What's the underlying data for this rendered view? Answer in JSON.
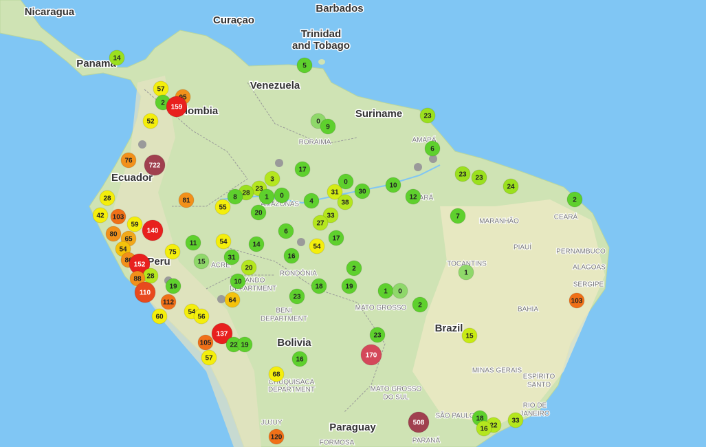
{
  "places": [
    {
      "label": "Nicaragua"
    },
    {
      "label": "Barbados"
    },
    {
      "label": "Curaçao"
    },
    {
      "label": "Trinidad"
    },
    {
      "label": "and Tobago"
    },
    {
      "label": "Panama"
    },
    {
      "label": "Venezuela"
    },
    {
      "label": "Colombia"
    },
    {
      "label": "Suriname"
    },
    {
      "label": "Ecuador"
    },
    {
      "label": "Peru"
    },
    {
      "label": "Bolivia"
    },
    {
      "label": "Brazil"
    },
    {
      "label": "Paraguay"
    },
    {
      "label": "RORAIMA"
    },
    {
      "label": "AMAPÁ"
    },
    {
      "label": "AMAZONAS"
    },
    {
      "label": "PARÁ"
    },
    {
      "label": "MARANHÃO"
    },
    {
      "label": "CEARÁ"
    },
    {
      "label": "PIAUÍ"
    },
    {
      "label": "PERNAMBUCO"
    },
    {
      "label": "ALAGOAS"
    },
    {
      "label": "SERGIPE"
    },
    {
      "label": "TOCANTINS"
    },
    {
      "label": "ACRE"
    },
    {
      "label": "RONDÔNIA"
    },
    {
      "label": "PANDO"
    },
    {
      "label": "DEPARTMENT"
    },
    {
      "label": "MATO GROSSO"
    },
    {
      "label": "BAHIA"
    },
    {
      "label": "BENI"
    },
    {
      "label": "DEPARTMENT"
    },
    {
      "label": "MINAS GERAIS"
    },
    {
      "label": "ESPÍRITO"
    },
    {
      "label": "SANTO"
    },
    {
      "label": "CHUQUISACA"
    },
    {
      "label": "DEPARTMENT"
    },
    {
      "label": "MATO GROSSO"
    },
    {
      "label": "DO SUL"
    },
    {
      "label": "RIO DE"
    },
    {
      "label": "JANEIRO"
    },
    {
      "label": "SÃO PAULO"
    },
    {
      "label": "JUJUY"
    },
    {
      "label": "PARANÁ"
    },
    {
      "label": "FORMOSA"
    }
  ],
  "markers": [
    {
      "value": 14,
      "color": "#9be01e"
    },
    {
      "value": 57,
      "color": "#f4ee0c"
    },
    {
      "value": 95,
      "color": "#f2901a"
    },
    {
      "value": 2,
      "color": "#5ed02d"
    },
    {
      "value": 159,
      "color": "#e8201e"
    },
    {
      "value": 52,
      "color": "#f4ee0c"
    },
    {
      "value": 5,
      "color": "#5ed02d"
    },
    {
      "value": 23,
      "color": "#9be01e"
    },
    {
      "value": 0,
      "color": "#8fd86a"
    },
    {
      "value": 9,
      "color": "#5ed02d"
    },
    {
      "value": 6,
      "color": "#5ed02d"
    },
    {
      "value": 76,
      "color": "#f2901a"
    },
    {
      "value": 722,
      "color": "#a0404f"
    },
    {
      "value": 17,
      "color": "#5ed02d"
    },
    {
      "value": 3,
      "color": "#b4e61e"
    },
    {
      "value": 0,
      "color": "#5ed02d"
    },
    {
      "value": 23,
      "color": "#b4e61e"
    },
    {
      "value": 28,
      "color": "#9be01e"
    },
    {
      "value": 8,
      "color": "#5ed02d"
    },
    {
      "value": 1,
      "color": "#5ed02d"
    },
    {
      "value": 0,
      "color": "#5ed02d"
    },
    {
      "value": 31,
      "color": "#d4ec14"
    },
    {
      "value": 30,
      "color": "#5ed02d"
    },
    {
      "value": 10,
      "color": "#5ed02d"
    },
    {
      "value": 23,
      "color": "#9be01e"
    },
    {
      "value": 23,
      "color": "#9be01e"
    },
    {
      "value": 24,
      "color": "#9be01e"
    },
    {
      "value": 12,
      "color": "#5ed02d"
    },
    {
      "value": 2,
      "color": "#5ed02d"
    },
    {
      "value": 28,
      "color": "#f4ee0c"
    },
    {
      "value": 4,
      "color": "#5ed02d"
    },
    {
      "value": 38,
      "color": "#b4e61e"
    },
    {
      "value": 55,
      "color": "#f4ee0c"
    },
    {
      "value": 81,
      "color": "#f2901a"
    },
    {
      "value": 20,
      "color": "#5ed02d"
    },
    {
      "value": 33,
      "color": "#b4e61e"
    },
    {
      "value": 27,
      "color": "#b4e61e"
    },
    {
      "value": 7,
      "color": "#5ed02d"
    },
    {
      "value": 42,
      "color": "#f4ee0c"
    },
    {
      "value": 103,
      "color": "#f07018"
    },
    {
      "value": 59,
      "color": "#f4ee0c"
    },
    {
      "value": 140,
      "color": "#e8201e"
    },
    {
      "value": 6,
      "color": "#5ed02d"
    },
    {
      "value": 80,
      "color": "#f2901a"
    },
    {
      "value": 65,
      "color": "#f2a81a"
    },
    {
      "value": 54,
      "color": "#f4ee0c"
    },
    {
      "value": 17,
      "color": "#5ed02d"
    },
    {
      "value": 11,
      "color": "#5ed02d"
    },
    {
      "value": 14,
      "color": "#5ed02d"
    },
    {
      "value": 54,
      "color": "#f4c20c"
    },
    {
      "value": 75,
      "color": "#f4ee0c"
    },
    {
      "value": 54,
      "color": "#f4ee0c"
    },
    {
      "value": 16,
      "color": "#5ed02d"
    },
    {
      "value": 31,
      "color": "#5ed02d"
    },
    {
      "value": 15,
      "color": "#8fd86a"
    },
    {
      "value": 86,
      "color": "#f2901a"
    },
    {
      "value": 152,
      "color": "#e8201e"
    },
    {
      "value": 20,
      "color": "#b4e61e"
    },
    {
      "value": 2,
      "color": "#5ed02d"
    },
    {
      "value": 28,
      "color": "#b4e61e"
    },
    {
      "value": 88,
      "color": "#f2901a"
    },
    {
      "value": 10,
      "color": "#5ed02d"
    },
    {
      "value": 19,
      "color": "#5ed02d"
    },
    {
      "value": 18,
      "color": "#5ed02d"
    },
    {
      "value": 19,
      "color": "#5ed02d"
    },
    {
      "value": 1,
      "color": "#5ed02d"
    },
    {
      "value": 0,
      "color": "#8fd86a"
    },
    {
      "value": 1,
      "color": "#8fd86a"
    },
    {
      "value": 110,
      "color": "#e84a1e"
    },
    {
      "value": 23,
      "color": "#5ed02d"
    },
    {
      "value": 64,
      "color": "#f4c20c"
    },
    {
      "value": 112,
      "color": "#f07018"
    },
    {
      "value": 2,
      "color": "#5ed02d"
    },
    {
      "value": 103,
      "color": "#f07018"
    },
    {
      "value": 54,
      "color": "#f4ee0c"
    },
    {
      "value": 56,
      "color": "#f4ee0c"
    },
    {
      "value": 60,
      "color": "#f4ee0c"
    },
    {
      "value": 137,
      "color": "#e8201e"
    },
    {
      "value": 15,
      "color": "#c8ea14"
    },
    {
      "value": 23,
      "color": "#5ed02d"
    },
    {
      "value": 22,
      "color": "#5ed02d"
    },
    {
      "value": 19,
      "color": "#5ed02d"
    },
    {
      "value": 105,
      "color": "#f07018"
    },
    {
      "value": 170,
      "color": "#d4485a"
    },
    {
      "value": 57,
      "color": "#f4ee0c"
    },
    {
      "value": 16,
      "color": "#5ed02d"
    },
    {
      "value": 68,
      "color": "#f4ee0c"
    },
    {
      "value": 508,
      "color": "#a0404f"
    },
    {
      "value": 18,
      "color": "#5ed02d"
    },
    {
      "value": 22,
      "color": "#b4e61e"
    },
    {
      "value": 16,
      "color": "#b4e61e"
    },
    {
      "value": 33,
      "color": "#b4e61e"
    },
    {
      "value": 120,
      "color": "#f07018"
    }
  ]
}
